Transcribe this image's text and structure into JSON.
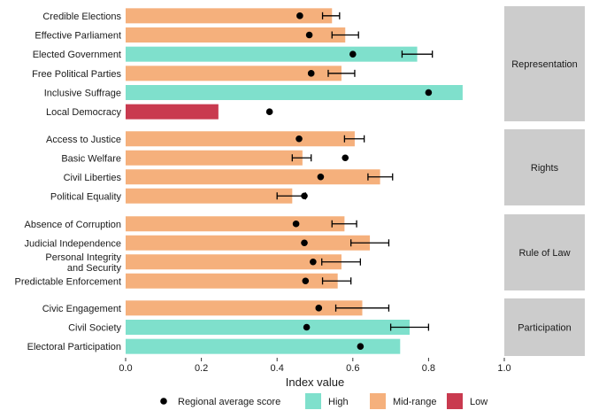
{
  "chart_data": {
    "type": "bar",
    "orientation": "horizontal",
    "xlabel": "Index value",
    "xlim": [
      0,
      1
    ],
    "x_ticks": [
      "0.0",
      "0.2",
      "0.4",
      "0.6",
      "0.8",
      "1.0"
    ],
    "grid": false,
    "legend_position": "bottom",
    "legend": {
      "point_label": "Regional average score",
      "levels": [
        "High",
        "Mid-range",
        "Low"
      ]
    },
    "colors": {
      "High": "#7fe0cc",
      "Mid-range": "#f5b07c",
      "Low": "#c93a4f",
      "point": "#000000",
      "errorbar": "#000000",
      "strip": "#cccccc"
    },
    "facets": [
      {
        "name": "Representation",
        "items": [
          {
            "label": "Credible Elections",
            "value": 0.545,
            "level": "Mid-range",
            "regional_avg": 0.46,
            "err_low": 0.52,
            "err_high": 0.565
          },
          {
            "label": "Effective Parliament",
            "value": 0.58,
            "level": "Mid-range",
            "regional_avg": 0.485,
            "err_low": 0.545,
            "err_high": 0.615
          },
          {
            "label": "Elected Government",
            "value": 0.77,
            "level": "High",
            "regional_avg": 0.6,
            "err_low": 0.73,
            "err_high": 0.81
          },
          {
            "label": "Free Political Parties",
            "value": 0.57,
            "level": "Mid-range",
            "regional_avg": 0.49,
            "err_low": 0.535,
            "err_high": 0.605
          },
          {
            "label": "Inclusive Suffrage",
            "value": 0.89,
            "level": "High",
            "regional_avg": 0.8,
            "err_low": null,
            "err_high": null
          },
          {
            "label": "Local Democracy",
            "value": 0.245,
            "level": "Low",
            "regional_avg": 0.38,
            "err_low": null,
            "err_high": null
          }
        ]
      },
      {
        "name": "Rights",
        "items": [
          {
            "label": "Access to Justice",
            "value": 0.605,
            "level": "Mid-range",
            "regional_avg": 0.458,
            "err_low": 0.578,
            "err_high": 0.63
          },
          {
            "label": "Basic Welfare",
            "value": 0.467,
            "level": "Mid-range",
            "regional_avg": 0.58,
            "err_low": 0.44,
            "err_high": 0.49
          },
          {
            "label": "Civil Liberties",
            "value": 0.672,
            "level": "Mid-range",
            "regional_avg": 0.515,
            "err_low": 0.64,
            "err_high": 0.705
          },
          {
            "label": "Political Equality",
            "value": 0.44,
            "level": "Mid-range",
            "regional_avg": 0.472,
            "err_low": 0.4,
            "err_high": 0.475
          }
        ]
      },
      {
        "name": "Rule of Law",
        "items": [
          {
            "label": "Absence of Corruption",
            "value": 0.578,
            "level": "Mid-range",
            "regional_avg": 0.45,
            "err_low": 0.545,
            "err_high": 0.61
          },
          {
            "label": "Judicial Independence",
            "value": 0.645,
            "level": "Mid-range",
            "regional_avg": 0.472,
            "err_low": 0.595,
            "err_high": 0.695
          },
          {
            "label": "Personal Integrity and Security",
            "value": 0.57,
            "level": "Mid-range",
            "regional_avg": 0.495,
            "err_low": 0.518,
            "err_high": 0.62
          },
          {
            "label": "Predictable Enforcement",
            "value": 0.56,
            "level": "Mid-range",
            "regional_avg": 0.475,
            "err_low": 0.52,
            "err_high": 0.595
          }
        ]
      },
      {
        "name": "Participation",
        "items": [
          {
            "label": "Civic Engagement",
            "value": 0.625,
            "level": "Mid-range",
            "regional_avg": 0.51,
            "err_low": 0.555,
            "err_high": 0.695
          },
          {
            "label": "Civil Society",
            "value": 0.75,
            "level": "High",
            "regional_avg": 0.478,
            "err_low": 0.7,
            "err_high": 0.8
          },
          {
            "label": "Electoral Participation",
            "value": 0.725,
            "level": "High",
            "regional_avg": 0.62,
            "err_low": null,
            "err_high": null
          }
        ]
      }
    ]
  }
}
